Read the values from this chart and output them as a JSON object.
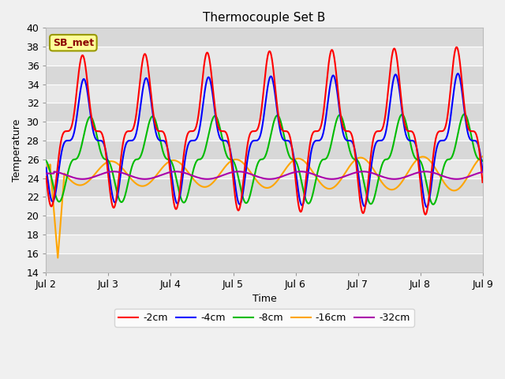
{
  "title": "Thermocouple Set B",
  "xlabel": "Time",
  "ylabel": "Temperature",
  "ylim": [
    14,
    40
  ],
  "annotation": "SB_met",
  "xtick_labels": [
    "Jul 2",
    "Jul 3",
    "Jul 4",
    "Jul 5",
    "Jul 6",
    "Jul 7",
    "Jul 8",
    "Jul 9"
  ],
  "legend_labels": [
    "-2cm",
    "-4cm",
    "-8cm",
    "-16cm",
    "-32cm"
  ],
  "colors": [
    "#ff0000",
    "#0000ff",
    "#00bb00",
    "#ffa500",
    "#aa00aa"
  ],
  "band_colors": [
    "#d8d8d8",
    "#e8e8e8"
  ],
  "grid_line_color": "#ffffff",
  "fig_bg": "#f0f0f0",
  "annotation_text_color": "#8b0000",
  "annotation_bg": "#ffff99",
  "annotation_edge": "#999900"
}
